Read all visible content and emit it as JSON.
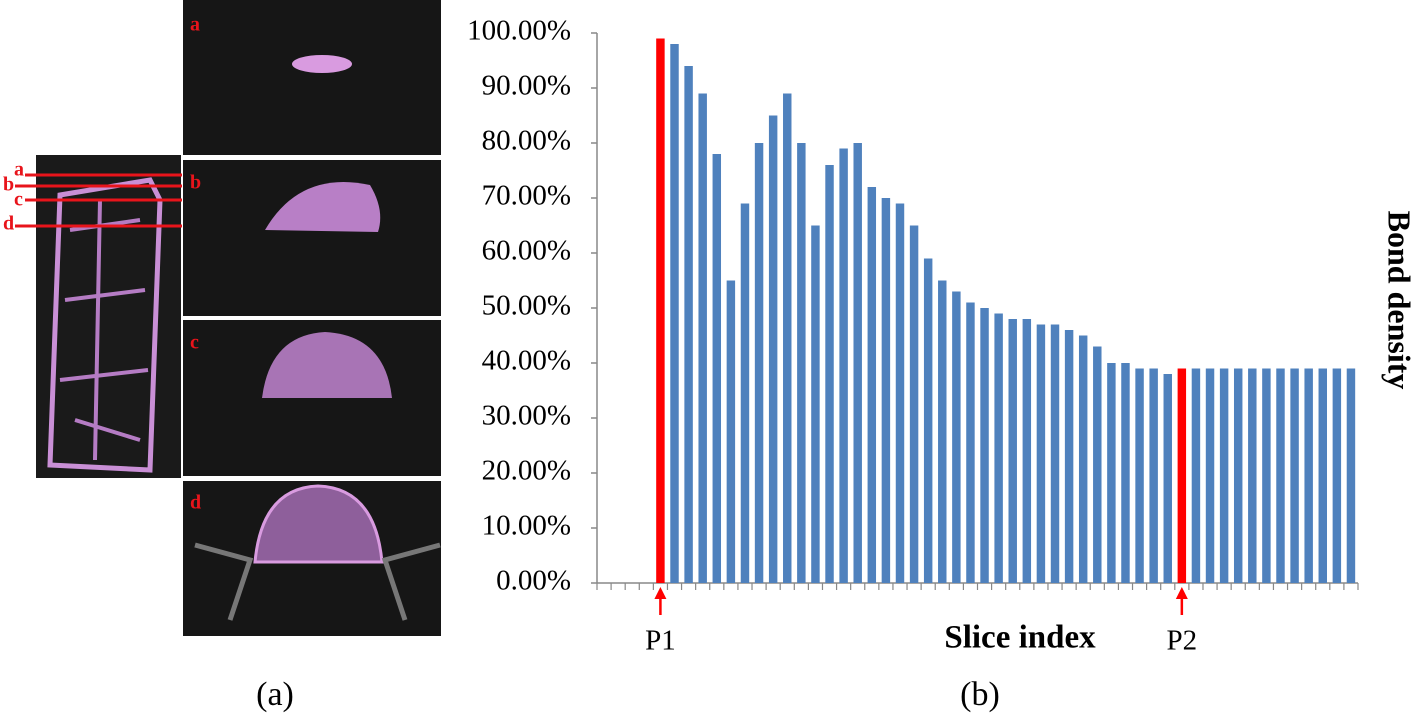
{
  "figure": {
    "panel_labels": [
      "a",
      "b",
      "c",
      "d"
    ],
    "captions": [
      "(a)",
      "(b)"
    ]
  },
  "chart_data": {
    "type": "bar",
    "ylabel": "Bond density",
    "xlabel": "Slice index",
    "values": [
      null,
      null,
      null,
      null,
      99,
      98,
      94,
      89,
      78,
      55,
      69,
      80,
      85,
      89,
      80,
      65,
      76,
      79,
      80,
      72,
      70,
      69,
      65,
      59,
      55,
      53,
      51,
      50,
      49,
      48,
      48,
      47,
      47,
      46,
      45,
      43,
      40,
      40,
      39,
      39,
      38,
      39,
      39,
      39,
      39,
      39,
      39,
      39,
      39,
      39,
      39,
      39,
      39,
      39
    ],
    "color": "#4f81bd",
    "highlights": [
      {
        "index": 4,
        "label": "P1",
        "color": "#ff0000"
      },
      {
        "index": 41,
        "label": "P2",
        "color": "#ff0000"
      }
    ],
    "ylim": [
      0,
      100
    ],
    "yticks": [
      {
        "value": 0,
        "label": "0.00%"
      },
      {
        "value": 10,
        "label": "10.00%"
      },
      {
        "value": 20,
        "label": "20.00%"
      },
      {
        "value": 30,
        "label": "30.00%"
      },
      {
        "value": 40,
        "label": "40.00%"
      },
      {
        "value": 50,
        "label": "50.00%"
      },
      {
        "value": 60,
        "label": "60.00%"
      },
      {
        "value": 70,
        "label": "70.00%"
      },
      {
        "value": 80,
        "label": "80.00%"
      },
      {
        "value": 90,
        "label": "90.00%"
      },
      {
        "value": 100,
        "label": "100.00%"
      }
    ]
  }
}
